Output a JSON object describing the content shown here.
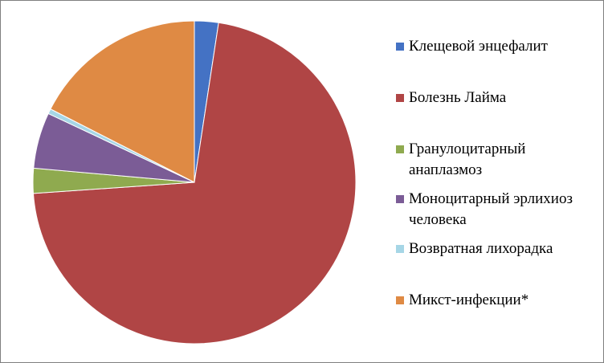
{
  "chart_data": {
    "type": "pie",
    "title": "",
    "start_angle_deg": 0,
    "direction": "clockwise",
    "legend_position": "right",
    "slices": [
      {
        "label": "Клещевой энцефалит",
        "value": 2.4,
        "color": "#4472c4"
      },
      {
        "label": "Болезнь Лайма",
        "value": 71.5,
        "color": "#b04545"
      },
      {
        "label": "Гранулоцитарный анаплазмоз",
        "value": 2.5,
        "color": "#8faa4f"
      },
      {
        "label": "Моноцитарный эрлихиоз человека",
        "value": 5.6,
        "color": "#7b5c96"
      },
      {
        "label": "Возвратная лихорадка",
        "value": 0.5,
        "color": "#a6d6e6"
      },
      {
        "label": "Микст-инфекции*",
        "value": 17.5,
        "color": "#df8a44"
      }
    ]
  }
}
